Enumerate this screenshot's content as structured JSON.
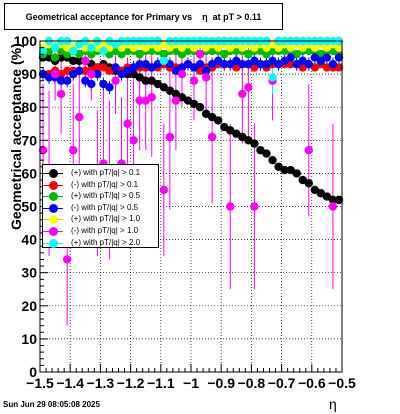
{
  "chart_data": {
    "type": "scatter",
    "title": "Geometrical acceptance for Primary vs    η  at pT > 0.11",
    "xlabel": "η",
    "ylabel": "Geometrical acceptance (%)",
    "xlim": [
      -1.5,
      -0.5
    ],
    "ylim": [
      0,
      100
    ],
    "x_ticks": [
      "−1.5",
      "−1.4",
      "−1.3",
      "−1.2",
      "−1.1",
      "−1",
      "−0.9",
      "−0.8",
      "−0.7",
      "−0.6",
      "−0.5"
    ],
    "x_tick_values": [
      -1.5,
      -1.4,
      -1.3,
      -1.2,
      -1.1,
      -1.0,
      -0.9,
      -0.8,
      -0.7,
      -0.6,
      -0.5
    ],
    "y_ticks": [
      "0",
      "10",
      "20",
      "30",
      "40",
      "50",
      "60",
      "70",
      "80",
      "90",
      "100"
    ],
    "y_tick_values": [
      0,
      10,
      20,
      30,
      40,
      50,
      60,
      70,
      80,
      90,
      100
    ],
    "grid": true,
    "legend_position": "left-middle",
    "series": [
      {
        "name": "(+) with pT/|q| > 0.1",
        "color": "#000000",
        "x": [
          -1.49,
          -1.47,
          -1.45,
          -1.43,
          -1.41,
          -1.39,
          -1.37,
          -1.35,
          -1.33,
          -1.31,
          -1.29,
          -1.27,
          -1.25,
          -1.23,
          -1.21,
          -1.19,
          -1.17,
          -1.15,
          -1.13,
          -1.11,
          -1.09,
          -1.07,
          -1.05,
          -1.03,
          -1.01,
          -0.99,
          -0.97,
          -0.95,
          -0.93,
          -0.91,
          -0.89,
          -0.87,
          -0.85,
          -0.83,
          -0.81,
          -0.79,
          -0.77,
          -0.75,
          -0.73,
          -0.71,
          -0.69,
          -0.67,
          -0.65,
          -0.63,
          -0.61,
          -0.59,
          -0.57,
          -0.55,
          -0.53,
          -0.51
        ],
        "y": [
          95,
          95,
          94,
          95,
          95,
          94,
          94,
          94,
          93,
          92,
          93,
          92,
          91,
          91,
          90,
          90,
          89,
          88,
          88,
          87,
          86,
          85,
          84,
          83,
          82,
          81,
          80,
          78,
          77,
          76,
          74,
          73,
          72,
          71,
          70,
          69,
          67,
          66,
          64,
          62,
          61,
          61,
          60,
          58,
          57,
          55,
          54,
          53,
          52,
          52
        ],
        "err": [
          1,
          1,
          1,
          1,
          1,
          1,
          1,
          1,
          1,
          1,
          1,
          1,
          1,
          1,
          1,
          1,
          1,
          1,
          1,
          1,
          1,
          1,
          1,
          1,
          1,
          1,
          1,
          1,
          1,
          1,
          1,
          1,
          1,
          1,
          1,
          1,
          1,
          1,
          1,
          1,
          1,
          1,
          1,
          1,
          1,
          1,
          1,
          1,
          1,
          1
        ]
      },
      {
        "name": "(-) with pT/|q| > 0.1",
        "color": "#ff0000",
        "x": [
          -1.49,
          -1.47,
          -1.45,
          -1.43,
          -1.41,
          -1.39,
          -1.37,
          -1.35,
          -1.33,
          -1.31,
          -1.29,
          -1.27,
          -1.25,
          -1.23,
          -1.21,
          -1.19,
          -1.17,
          -1.15,
          -1.13,
          -1.11,
          -1.09,
          -1.07,
          -1.05,
          -1.03,
          -1.01,
          -0.99,
          -0.97,
          -0.95,
          -0.93,
          -0.91,
          -0.89,
          -0.87,
          -0.85,
          -0.83,
          -0.81,
          -0.79,
          -0.77,
          -0.75,
          -0.73,
          -0.71,
          -0.69,
          -0.67,
          -0.65,
          -0.63,
          -0.61,
          -0.59,
          -0.57,
          -0.55,
          -0.53,
          -0.51
        ],
        "y": [
          90,
          90,
          91,
          90,
          91,
          91,
          91,
          91,
          91,
          92,
          92,
          91,
          92,
          91,
          92,
          92,
          92,
          92,
          92,
          92,
          93,
          92,
          92,
          92,
          93,
          92,
          91,
          92,
          92,
          93,
          93,
          93,
          92,
          93,
          93,
          92,
          93,
          92,
          93,
          93,
          93,
          93,
          93,
          92,
          93,
          92,
          93,
          92,
          92,
          92
        ],
        "err": [
          1,
          1,
          1,
          1,
          1,
          1,
          1,
          1,
          1,
          1,
          1,
          1,
          1,
          1,
          1,
          1,
          1,
          1,
          1,
          1,
          1,
          1,
          1,
          1,
          1,
          1,
          1,
          1,
          1,
          1,
          1,
          1,
          1,
          1,
          1,
          1,
          1,
          1,
          1,
          1,
          1,
          1,
          1,
          1,
          1,
          1,
          1,
          1,
          1,
          1
        ]
      },
      {
        "name": "(+) with pT/|q| > 0.5",
        "color": "#00bb00",
        "x": [
          -1.49,
          -1.47,
          -1.45,
          -1.43,
          -1.41,
          -1.39,
          -1.37,
          -1.35,
          -1.33,
          -1.31,
          -1.29,
          -1.27,
          -1.25,
          -1.23,
          -1.21,
          -1.19,
          -1.17,
          -1.15,
          -1.13,
          -1.11,
          -1.09,
          -1.07,
          -1.05,
          -1.03,
          -1.01,
          -0.99,
          -0.97,
          -0.95,
          -0.93,
          -0.91,
          -0.89,
          -0.87,
          -0.85,
          -0.83,
          -0.81,
          -0.79,
          -0.77,
          -0.75,
          -0.73,
          -0.71,
          -0.69,
          -0.67,
          -0.65,
          -0.63,
          -0.61,
          -0.59,
          -0.57,
          -0.55,
          -0.53,
          -0.51
        ],
        "y": [
          96,
          97,
          95,
          97,
          96,
          97,
          96,
          97,
          96,
          97,
          97,
          96,
          97,
          96,
          97,
          97,
          96,
          97,
          97,
          97,
          96,
          97,
          97,
          96,
          97,
          97,
          96,
          97,
          97,
          97,
          96,
          97,
          97,
          97,
          96,
          97,
          97,
          96,
          97,
          97,
          97,
          97,
          96,
          97,
          97,
          97,
          96,
          97,
          97,
          96
        ],
        "err": [
          1,
          1,
          1,
          1,
          1,
          1,
          1,
          1,
          1,
          1,
          1,
          1,
          1,
          1,
          1,
          1,
          1,
          1,
          1,
          1,
          1,
          1,
          1,
          1,
          1,
          1,
          1,
          1,
          1,
          1,
          1,
          1,
          1,
          1,
          1,
          1,
          1,
          1,
          1,
          1,
          1,
          1,
          1,
          1,
          1,
          1,
          1,
          1,
          1,
          1
        ]
      },
      {
        "name": "(-) with pT/|q| > 0.5",
        "color": "#0000ff",
        "x": [
          -1.49,
          -1.47,
          -1.45,
          -1.43,
          -1.41,
          -1.39,
          -1.37,
          -1.35,
          -1.33,
          -1.31,
          -1.29,
          -1.27,
          -1.25,
          -1.23,
          -1.21,
          -1.19,
          -1.17,
          -1.15,
          -1.13,
          -1.11,
          -1.09,
          -1.07,
          -1.05,
          -1.03,
          -1.01,
          -0.99,
          -0.97,
          -0.95,
          -0.93,
          -0.91,
          -0.89,
          -0.87,
          -0.85,
          -0.83,
          -0.81,
          -0.79,
          -0.77,
          -0.75,
          -0.73,
          -0.71,
          -0.69,
          -0.67,
          -0.65,
          -0.63,
          -0.61,
          -0.59,
          -0.57,
          -0.55,
          -0.53,
          -0.51
        ],
        "y": [
          90,
          89,
          89,
          88,
          88,
          90,
          91,
          88,
          87,
          90,
          87,
          86,
          92,
          90,
          91,
          92,
          93,
          93,
          92,
          93,
          94,
          93,
          91,
          92,
          93,
          92,
          93,
          91,
          93,
          94,
          93,
          93,
          94,
          93,
          93,
          94,
          93,
          93,
          94,
          93,
          94,
          95,
          93,
          94,
          93,
          95,
          94,
          95,
          93,
          95
        ],
        "err": [
          2,
          2,
          2,
          2,
          2,
          2,
          2,
          2,
          2,
          2,
          2,
          2,
          2,
          2,
          2,
          2,
          2,
          2,
          2,
          2,
          2,
          2,
          2,
          2,
          2,
          2,
          2,
          2,
          2,
          2,
          2,
          2,
          2,
          2,
          2,
          2,
          2,
          2,
          2,
          2,
          2,
          2,
          2,
          2,
          2,
          2,
          2,
          2,
          2,
          2
        ]
      },
      {
        "name": "(+) with pT/|q| > 1.0",
        "color": "#ffff00",
        "x": [
          -1.49,
          -1.47,
          -1.45,
          -1.43,
          -1.41,
          -1.39,
          -1.37,
          -1.35,
          -1.33,
          -1.31,
          -1.29,
          -1.27,
          -1.25,
          -1.23,
          -1.21,
          -1.19,
          -1.17,
          -1.15,
          -1.13,
          -1.11,
          -1.09,
          -1.07,
          -1.05,
          -1.03,
          -1.01,
          -0.99,
          -0.97,
          -0.95,
          -0.93,
          -0.91,
          -0.89,
          -0.87,
          -0.85,
          -0.83,
          -0.81,
          -0.79,
          -0.77,
          -0.75,
          -0.73,
          -0.71,
          -0.69,
          -0.67,
          -0.65,
          -0.63,
          -0.61,
          -0.59,
          -0.57,
          -0.55,
          -0.53,
          -0.51
        ],
        "y": [
          98,
          99,
          98,
          99,
          98,
          98,
          99,
          98,
          99,
          98,
          99,
          98,
          99,
          98,
          99,
          98,
          99,
          98,
          99,
          98,
          99,
          98,
          99,
          98,
          99,
          98,
          99,
          98,
          99,
          98,
          99,
          98,
          99,
          98,
          99,
          98,
          99,
          98,
          99,
          98,
          99,
          98,
          99,
          98,
          99,
          98,
          99,
          98,
          99,
          98
        ],
        "err": [
          1,
          1,
          1,
          1,
          1,
          1,
          1,
          1,
          1,
          1,
          1,
          1,
          1,
          1,
          1,
          1,
          1,
          1,
          1,
          1,
          1,
          1,
          1,
          1,
          1,
          1,
          1,
          1,
          1,
          1,
          1,
          1,
          1,
          1,
          1,
          1,
          1,
          1,
          1,
          1,
          1,
          1,
          1,
          1,
          1,
          1,
          1,
          1,
          1,
          1
        ]
      },
      {
        "name": "(-) with pT/|q| > 1.0",
        "color": "#ff00ff",
        "x": [
          -1.49,
          -1.47,
          -1.45,
          -1.43,
          -1.41,
          -1.39,
          -1.37,
          -1.35,
          -1.33,
          -1.31,
          -1.29,
          -1.27,
          -1.25,
          -1.23,
          -1.21,
          -1.19,
          -1.17,
          -1.15,
          -1.13,
          -1.11,
          -1.09,
          -1.07,
          -1.05,
          -1.03,
          -1.01,
          -0.99,
          -0.97,
          -0.95,
          -0.93,
          -0.91,
          -0.89,
          -0.87,
          -0.85,
          -0.83,
          -0.81,
          -0.79,
          -0.77,
          -0.75,
          -0.73,
          -0.71,
          -0.69,
          -0.67,
          -0.65,
          -0.63,
          -0.61,
          -0.59,
          -0.57,
          -0.55,
          -0.53,
          -0.51
        ],
        "y": [
          67,
          60,
          90,
          84,
          34,
          67,
          77,
          94,
          90,
          57,
          63,
          58,
          88,
          63,
          75,
          70,
          82,
          82,
          83,
          100,
          55,
          71,
          82,
          90,
          100,
          88,
          96,
          89,
          71,
          100,
          100,
          50,
          100,
          84,
          86,
          50,
          100,
          100,
          88,
          100,
          100,
          100,
          100,
          100,
          67,
          100,
          100,
          100,
          50,
          100
        ],
        "err": [
          20,
          25,
          8,
          12,
          20,
          20,
          18,
          5,
          8,
          22,
          22,
          24,
          10,
          20,
          20,
          22,
          15,
          15,
          18,
          0,
          20,
          22,
          15,
          10,
          0,
          12,
          5,
          10,
          20,
          0,
          0,
          25,
          0,
          15,
          15,
          25,
          0,
          0,
          12,
          0,
          0,
          0,
          0,
          0,
          20,
          0,
          0,
          0,
          25,
          0
        ]
      },
      {
        "name": "(+) with pT/|q| > 2.0",
        "color": "#00ffff",
        "x": [
          -1.49,
          -1.47,
          -1.45,
          -1.43,
          -1.41,
          -1.39,
          -1.37,
          -1.35,
          -1.33,
          -1.31,
          -1.29,
          -1.27,
          -1.25,
          -1.23,
          -1.21,
          -1.19,
          -1.17,
          -1.15,
          -1.13,
          -1.11,
          -1.09,
          -1.07,
          -1.05,
          -1.03,
          -1.01,
          -0.99,
          -0.97,
          -0.95,
          -0.93,
          -0.91,
          -0.89,
          -0.87,
          -0.85,
          -0.83,
          -0.81,
          -0.79,
          -0.77,
          -0.75,
          -0.73,
          -0.71,
          -0.69,
          -0.67,
          -0.65,
          -0.63,
          -0.61,
          -0.59,
          -0.57,
          -0.55,
          -0.53,
          -0.51
        ],
        "y": [
          97,
          100,
          98,
          100,
          100,
          97,
          99,
          100,
          98,
          100,
          97,
          100,
          99,
          100,
          100,
          100,
          100,
          100,
          100,
          100,
          94,
          100,
          100,
          100,
          100,
          100,
          100,
          100,
          100,
          100,
          100,
          100,
          100,
          100,
          100,
          100,
          100,
          100,
          89,
          100,
          100,
          100,
          100,
          100,
          100,
          100,
          100,
          100,
          100,
          100
        ],
        "err": [
          2,
          0,
          2,
          0,
          0,
          2,
          1,
          0,
          2,
          0,
          2,
          0,
          1,
          0,
          0,
          0,
          0,
          0,
          0,
          0,
          3,
          0,
          0,
          0,
          0,
          0,
          0,
          0,
          0,
          0,
          0,
          0,
          0,
          0,
          0,
          0,
          0,
          0,
          5,
          0,
          0,
          0,
          0,
          0,
          0,
          0,
          0,
          0,
          0,
          0
        ]
      }
    ]
  },
  "footer": "Sun Jun 29 08:05:08 2025"
}
